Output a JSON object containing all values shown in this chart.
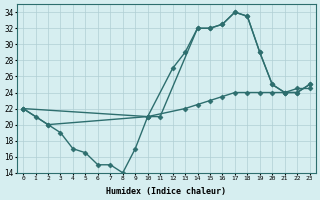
{
  "title": "",
  "xlabel": "Humidex (Indice chaleur)",
  "ylabel": "",
  "background_color": "#d6eef0",
  "grid_color": "#b0cfd4",
  "line_color": "#2d6e6e",
  "ylim": [
    14,
    35
  ],
  "xlim": [
    -0.5,
    23.5
  ],
  "yticks": [
    14,
    16,
    18,
    20,
    22,
    24,
    26,
    28,
    30,
    32,
    34
  ],
  "xticks": [
    0,
    1,
    2,
    3,
    4,
    5,
    6,
    7,
    8,
    9,
    10,
    11,
    12,
    13,
    14,
    15,
    16,
    17,
    18,
    19,
    20,
    21,
    22,
    23
  ],
  "series": [
    {
      "x": [
        0,
        1,
        2,
        3,
        4,
        5,
        6,
        7,
        8,
        9,
        10,
        11,
        14,
        15,
        16,
        17,
        18,
        19,
        20,
        21,
        22,
        23
      ],
      "y": [
        22,
        21,
        20,
        19,
        17,
        16.5,
        15,
        15,
        14,
        17,
        21,
        21,
        32,
        32,
        32.5,
        34,
        33.5,
        29,
        25,
        24,
        24,
        25
      ],
      "color": "#2d6e6e",
      "linewidth": 1.0,
      "marker": "D",
      "markersize": 2.5
    },
    {
      "x": [
        0,
        2,
        10,
        13,
        14,
        15,
        16,
        17,
        18,
        19,
        20,
        21,
        22,
        23
      ],
      "y": [
        22,
        20,
        21,
        22,
        22.5,
        23,
        23.5,
        24,
        24,
        24,
        24,
        24,
        24.5,
        24.5
      ],
      "color": "#2d6e6e",
      "linewidth": 1.0,
      "marker": "D",
      "markersize": 2.5
    },
    {
      "x": [
        0,
        10,
        12,
        13,
        14,
        15,
        16,
        17,
        18,
        19,
        20,
        21,
        22,
        23
      ],
      "y": [
        22,
        21,
        27,
        29,
        32,
        32,
        32.5,
        34,
        33.5,
        29,
        25,
        24,
        24,
        25
      ],
      "color": "#2d6e6e",
      "linewidth": 1.0,
      "marker": "D",
      "markersize": 2.5
    }
  ]
}
